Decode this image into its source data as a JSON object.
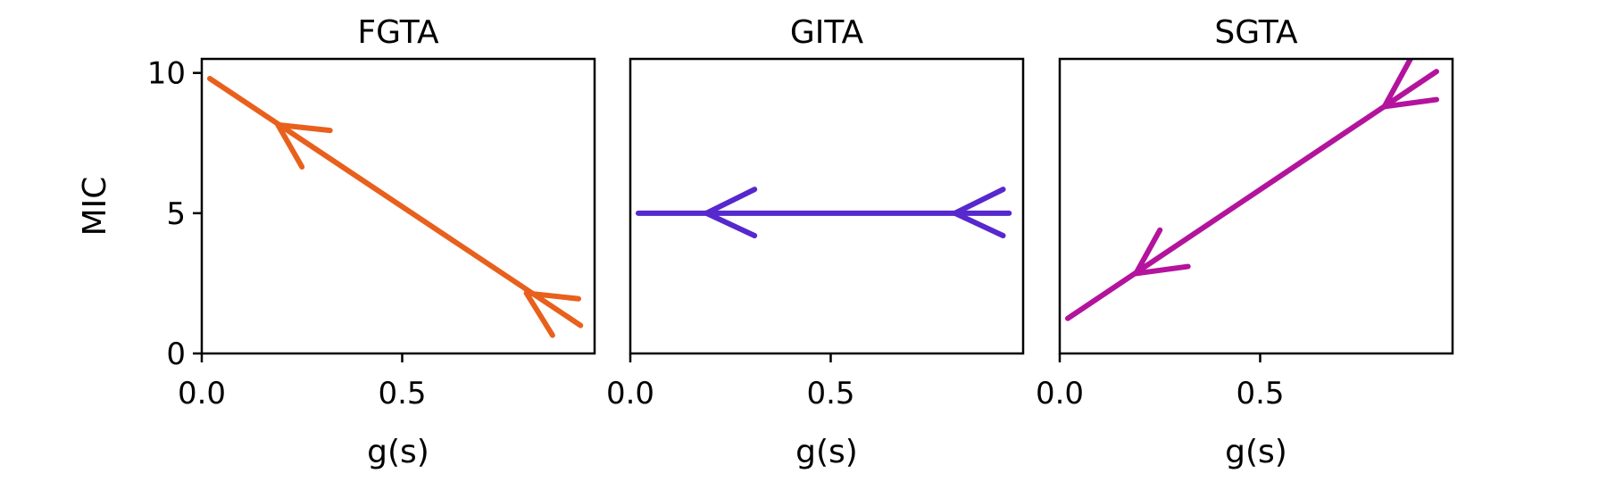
{
  "chart_data": [
    {
      "type": "line",
      "title": "FGTA",
      "xlabel": "g(s)",
      "ylabel": "MIC",
      "xlim": [
        0.0,
        0.98
      ],
      "ylim": [
        0,
        10.5
      ],
      "xticks": [
        0.0,
        0.5
      ],
      "xtick_labels": [
        "0.0",
        "0.5"
      ],
      "yticks": [
        0,
        5,
        10
      ],
      "ytick_labels": [
        "0",
        "5",
        "10"
      ],
      "grid": false,
      "color": "#e8601c",
      "series": [
        {
          "x": [
            0.02,
            0.945
          ],
          "y": [
            9.8,
            1.0
          ]
        }
      ],
      "arrowheads": [
        {
          "x": 0.19,
          "y": 8.15,
          "arm_ends": [
            [
              0.32,
              7.95
            ],
            [
              0.25,
              6.65
            ]
          ]
        },
        {
          "x": 0.81,
          "y": 2.15,
          "arm_ends": [
            [
              0.94,
              1.95
            ],
            [
              0.875,
              0.65
            ]
          ]
        }
      ]
    },
    {
      "type": "line",
      "title": "GITA",
      "xlabel": "g(s)",
      "ylabel": "",
      "xlim": [
        0.0,
        0.98
      ],
      "ylim": [
        0,
        10.5
      ],
      "xticks": [
        0.0,
        0.5
      ],
      "xtick_labels": [
        "0.0",
        "0.5"
      ],
      "yticks": [],
      "ytick_labels": [],
      "grid": false,
      "color": "#5628ce",
      "series": [
        {
          "x": [
            0.02,
            0.945
          ],
          "y": [
            5.0,
            5.0
          ]
        }
      ],
      "arrowheads": [
        {
          "x": 0.19,
          "y": 5.0,
          "arm_ends": [
            [
              0.31,
              5.85
            ],
            [
              0.31,
              4.2
            ]
          ]
        },
        {
          "x": 0.81,
          "y": 5.0,
          "arm_ends": [
            [
              0.93,
              5.85
            ],
            [
              0.93,
              4.2
            ]
          ]
        }
      ]
    },
    {
      "type": "line",
      "title": "SGTA",
      "xlabel": "g(s)",
      "ylabel": "",
      "xlim": [
        0.0,
        0.98
      ],
      "ylim": [
        0,
        10.5
      ],
      "xticks": [
        0.0,
        0.5
      ],
      "xtick_labels": [
        "0.0",
        "0.5"
      ],
      "yticks": [],
      "ytick_labels": [],
      "grid": false,
      "color": "#b3139d",
      "series": [
        {
          "x": [
            0.02,
            0.94
          ],
          "y": [
            1.25,
            10.05
          ]
        }
      ],
      "arrowheads": [
        {
          "x": 0.19,
          "y": 2.85,
          "arm_ends": [
            [
              0.32,
              3.1
            ],
            [
              0.25,
              4.4
            ]
          ]
        },
        {
          "x": 0.81,
          "y": 8.8,
          "arm_ends": [
            [
              0.94,
              9.05
            ],
            [
              0.875,
              10.5
            ]
          ]
        }
      ]
    }
  ]
}
